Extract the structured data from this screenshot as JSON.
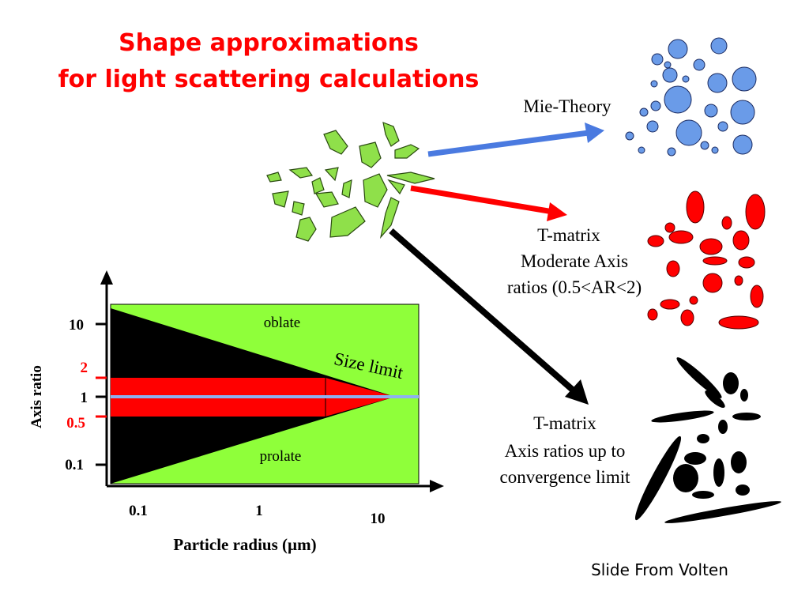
{
  "title": {
    "lines": [
      "Shape approximations",
      "for light scattering calculations"
    ]
  },
  "methods": [
    {
      "lines": [
        "Mie-Theory"
      ]
    },
    {
      "lines": [
        "T-matrix",
        "Moderate Axis",
        "ratios (0.5<AR<2)"
      ]
    },
    {
      "lines": [
        "T-matrix",
        "Axis ratios up to",
        "convergence limit"
      ]
    }
  ],
  "plot": {
    "regions": {
      "oblate": "oblate",
      "prolate": "prolate",
      "size_limit": "Size limit"
    },
    "y_axis": {
      "label": "Axis ratio",
      "ticks": [
        "10",
        "2",
        "1",
        "0.5",
        "0.1"
      ]
    },
    "x_axis": {
      "label": "Particle radius (µm)",
      "ticks": [
        "0.1",
        "1",
        "10"
      ]
    }
  },
  "footer": "Slide From Volten"
}
